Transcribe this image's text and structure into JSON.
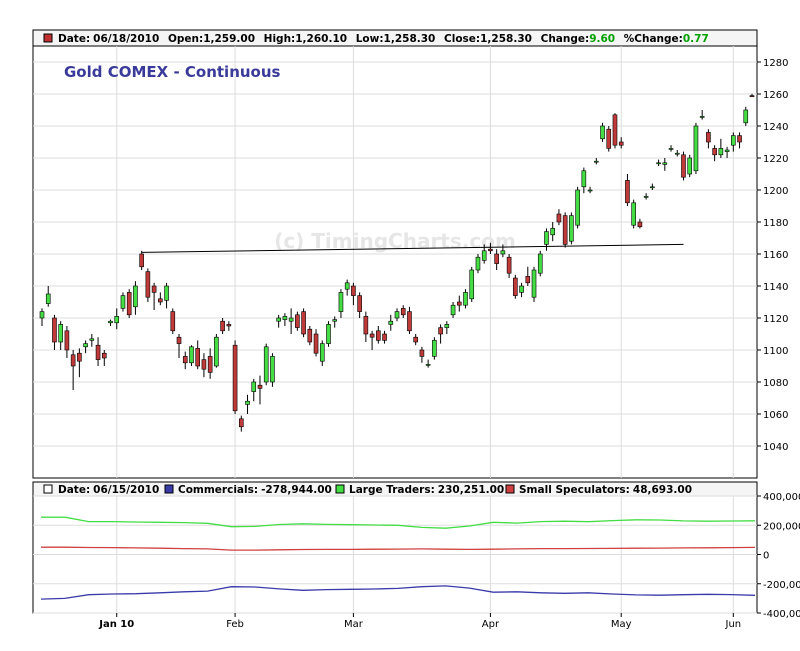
{
  "info_bar": {
    "marker_color": "#c03030",
    "date_label": "Date:",
    "date": "06/18/2010",
    "open_label": "Open:",
    "open": "1,259.00",
    "high_label": "High:",
    "high": "1,260.10",
    "low_label": "Low:",
    "low": "1,258.30",
    "close_label": "Close:",
    "close": "1,258.30",
    "change_label": "Change:",
    "change": "9.60",
    "pct_change_label": "%Change:",
    "pct_change": "0.77",
    "positive_color": "#00a000"
  },
  "cot_bar": {
    "date_label": "Date:",
    "date": "06/15/2010",
    "commercials_label": "Commercials:",
    "commercials": "-278,944.00",
    "large_label": "Large Traders:",
    "large": "230,251.00",
    "small_label": "Small Speculators:",
    "small": "48,693.00"
  },
  "watermark": "(c) TimingCharts.com",
  "colors": {
    "up": "#44dd44",
    "down": "#c03a3a",
    "title": "#3a3a9a",
    "commercials": "#3a3aaa",
    "large": "#44dd44",
    "small": "#d04040",
    "grid": "#dddddd"
  },
  "chart_data": [
    {
      "type": "candlestick",
      "title": "Gold COMEX - Continuous",
      "ylim": [
        1020,
        1290
      ],
      "y_ticks": [
        1040,
        1060,
        1080,
        1100,
        1120,
        1140,
        1160,
        1180,
        1200,
        1220,
        1240,
        1260,
        1280
      ],
      "x_ticks": [
        "Jan 10",
        "Feb",
        "Mar",
        "Apr",
        "May",
        "Jun"
      ],
      "trendline": {
        "from": [
          16,
          1161
        ],
        "to": [
          103,
          1166
        ]
      },
      "bars": [
        {
          "o": 1120,
          "h": 1126,
          "l": 1115,
          "c": 1124
        },
        {
          "o": 1129,
          "h": 1140,
          "l": 1127,
          "c": 1135
        },
        {
          "o": 1120,
          "h": 1122,
          "l": 1100,
          "c": 1105
        },
        {
          "o": 1105,
          "h": 1118,
          "l": 1100,
          "c": 1116
        },
        {
          "o": 1112,
          "h": 1115,
          "l": 1095,
          "c": 1100
        },
        {
          "o": 1097,
          "h": 1100,
          "l": 1075,
          "c": 1090
        },
        {
          "o": 1098,
          "h": 1101,
          "l": 1083,
          "c": 1093
        },
        {
          "o": 1102,
          "h": 1106,
          "l": 1098,
          "c": 1104
        },
        {
          "o": 1106,
          "h": 1110,
          "l": 1102,
          "c": 1107
        },
        {
          "o": 1103,
          "h": 1108,
          "l": 1090,
          "c": 1094
        },
        {
          "o": 1098,
          "h": 1100,
          "l": 1090,
          "c": 1095
        },
        {
          "o": 1117,
          "h": 1119,
          "l": 1115,
          "c": 1118
        },
        {
          "o": 1117,
          "h": 1126,
          "l": 1113,
          "c": 1121
        },
        {
          "o": 1126,
          "h": 1136,
          "l": 1124,
          "c": 1134
        },
        {
          "o": 1136,
          "h": 1138,
          "l": 1120,
          "c": 1122
        },
        {
          "o": 1127,
          "h": 1143,
          "l": 1122,
          "c": 1140
        },
        {
          "o": 1160,
          "h": 1162,
          "l": 1150,
          "c": 1152
        },
        {
          "o": 1149,
          "h": 1151,
          "l": 1130,
          "c": 1133
        },
        {
          "o": 1140,
          "h": 1142,
          "l": 1125,
          "c": 1136
        },
        {
          "o": 1132,
          "h": 1136,
          "l": 1128,
          "c": 1130
        },
        {
          "o": 1131,
          "h": 1142,
          "l": 1126,
          "c": 1140
        },
        {
          "o": 1124,
          "h": 1126,
          "l": 1110,
          "c": 1112
        },
        {
          "o": 1108,
          "h": 1110,
          "l": 1095,
          "c": 1104
        },
        {
          "o": 1096,
          "h": 1099,
          "l": 1088,
          "c": 1092
        },
        {
          "o": 1092,
          "h": 1103,
          "l": 1090,
          "c": 1102
        },
        {
          "o": 1101,
          "h": 1106,
          "l": 1088,
          "c": 1090
        },
        {
          "o": 1094,
          "h": 1098,
          "l": 1083,
          "c": 1088
        },
        {
          "o": 1096,
          "h": 1101,
          "l": 1082,
          "c": 1086
        },
        {
          "o": 1090,
          "h": 1110,
          "l": 1089,
          "c": 1108
        },
        {
          "o": 1118,
          "h": 1120,
          "l": 1110,
          "c": 1112
        },
        {
          "o": 1116,
          "h": 1118,
          "l": 1112,
          "c": 1115
        },
        {
          "o": 1103,
          "h": 1106,
          "l": 1060,
          "c": 1062
        },
        {
          "o": 1057,
          "h": 1059,
          "l": 1049,
          "c": 1052
        },
        {
          "o": 1066,
          "h": 1072,
          "l": 1060,
          "c": 1068
        },
        {
          "o": 1074,
          "h": 1082,
          "l": 1068,
          "c": 1080
        },
        {
          "o": 1078,
          "h": 1084,
          "l": 1066,
          "c": 1076
        },
        {
          "o": 1080,
          "h": 1104,
          "l": 1078,
          "c": 1102
        },
        {
          "o": 1080,
          "h": 1098,
          "l": 1077,
          "c": 1096
        },
        {
          "o": 1118,
          "h": 1122,
          "l": 1114,
          "c": 1120
        },
        {
          "o": 1119,
          "h": 1123,
          "l": 1115,
          "c": 1121
        },
        {
          "o": 1118,
          "h": 1126,
          "l": 1110,
          "c": 1120
        },
        {
          "o": 1122,
          "h": 1124,
          "l": 1112,
          "c": 1114
        },
        {
          "o": 1124,
          "h": 1126,
          "l": 1108,
          "c": 1110
        },
        {
          "o": 1113,
          "h": 1115,
          "l": 1103,
          "c": 1105
        },
        {
          "o": 1110,
          "h": 1113,
          "l": 1096,
          "c": 1098
        },
        {
          "o": 1093,
          "h": 1106,
          "l": 1090,
          "c": 1104
        },
        {
          "o": 1104,
          "h": 1118,
          "l": 1102,
          "c": 1116
        },
        {
          "o": 1118,
          "h": 1121,
          "l": 1114,
          "c": 1119
        },
        {
          "o": 1124,
          "h": 1138,
          "l": 1120,
          "c": 1136
        },
        {
          "o": 1138,
          "h": 1144,
          "l": 1134,
          "c": 1142
        },
        {
          "o": 1140,
          "h": 1142,
          "l": 1128,
          "c": 1134
        },
        {
          "o": 1134,
          "h": 1136,
          "l": 1120,
          "c": 1124
        },
        {
          "o": 1121,
          "h": 1124,
          "l": 1105,
          "c": 1110
        },
        {
          "o": 1110,
          "h": 1112,
          "l": 1100,
          "c": 1108
        },
        {
          "o": 1112,
          "h": 1115,
          "l": 1104,
          "c": 1106
        },
        {
          "o": 1110,
          "h": 1112,
          "l": 1104,
          "c": 1106
        },
        {
          "o": 1116,
          "h": 1122,
          "l": 1112,
          "c": 1118
        },
        {
          "o": 1120,
          "h": 1126,
          "l": 1118,
          "c": 1124
        },
        {
          "o": 1126,
          "h": 1128,
          "l": 1120,
          "c": 1122
        },
        {
          "o": 1124,
          "h": 1127,
          "l": 1110,
          "c": 1112
        },
        {
          "o": 1108,
          "h": 1110,
          "l": 1103,
          "c": 1105
        },
        {
          "o": 1100,
          "h": 1102,
          "l": 1092,
          "c": 1096
        },
        {
          "o": 1091,
          "h": 1094,
          "l": 1089,
          "c": 1091
        },
        {
          "o": 1096,
          "h": 1108,
          "l": 1094,
          "c": 1106
        },
        {
          "o": 1114,
          "h": 1116,
          "l": 1104,
          "c": 1110
        },
        {
          "o": 1114,
          "h": 1118,
          "l": 1110,
          "c": 1116
        },
        {
          "o": 1122,
          "h": 1130,
          "l": 1120,
          "c": 1128
        },
        {
          "o": 1130,
          "h": 1134,
          "l": 1124,
          "c": 1128
        },
        {
          "o": 1128,
          "h": 1138,
          "l": 1126,
          "c": 1136
        },
        {
          "o": 1132,
          "h": 1152,
          "l": 1130,
          "c": 1150
        },
        {
          "o": 1150,
          "h": 1160,
          "l": 1148,
          "c": 1158
        },
        {
          "o": 1156,
          "h": 1166,
          "l": 1154,
          "c": 1162
        },
        {
          "o": 1163,
          "h": 1167,
          "l": 1160,
          "c": 1162
        },
        {
          "o": 1160,
          "h": 1163,
          "l": 1150,
          "c": 1154
        },
        {
          "o": 1160,
          "h": 1166,
          "l": 1158,
          "c": 1162
        },
        {
          "o": 1158,
          "h": 1160,
          "l": 1145,
          "c": 1148
        },
        {
          "o": 1145,
          "h": 1147,
          "l": 1132,
          "c": 1134
        },
        {
          "o": 1136,
          "h": 1142,
          "l": 1133,
          "c": 1140
        },
        {
          "o": 1146,
          "h": 1152,
          "l": 1140,
          "c": 1142
        },
        {
          "o": 1133,
          "h": 1152,
          "l": 1130,
          "c": 1150
        },
        {
          "o": 1148,
          "h": 1162,
          "l": 1146,
          "c": 1160
        },
        {
          "o": 1166,
          "h": 1176,
          "l": 1162,
          "c": 1174
        },
        {
          "o": 1172,
          "h": 1180,
          "l": 1168,
          "c": 1176
        },
        {
          "o": 1185,
          "h": 1188,
          "l": 1178,
          "c": 1180
        },
        {
          "o": 1184,
          "h": 1186,
          "l": 1164,
          "c": 1166
        },
        {
          "o": 1168,
          "h": 1186,
          "l": 1166,
          "c": 1184
        },
        {
          "o": 1178,
          "h": 1202,
          "l": 1176,
          "c": 1200
        },
        {
          "o": 1202,
          "h": 1214,
          "l": 1198,
          "c": 1212
        },
        {
          "o": 1200,
          "h": 1202,
          "l": 1198,
          "c": 1200
        },
        {
          "o": 1218,
          "h": 1220,
          "l": 1216,
          "c": 1218
        },
        {
          "o": 1232,
          "h": 1242,
          "l": 1230,
          "c": 1240
        },
        {
          "o": 1238,
          "h": 1240,
          "l": 1224,
          "c": 1226
        },
        {
          "o": 1247,
          "h": 1248,
          "l": 1226,
          "c": 1228
        },
        {
          "o": 1230,
          "h": 1233,
          "l": 1226,
          "c": 1228
        },
        {
          "o": 1206,
          "h": 1210,
          "l": 1190,
          "c": 1192
        },
        {
          "o": 1178,
          "h": 1194,
          "l": 1176,
          "c": 1192
        },
        {
          "o": 1180,
          "h": 1182,
          "l": 1176,
          "c": 1177
        },
        {
          "o": 1196,
          "h": 1198,
          "l": 1194,
          "c": 1196
        },
        {
          "o": 1202,
          "h": 1204,
          "l": 1200,
          "c": 1202
        },
        {
          "o": 1217,
          "h": 1219,
          "l": 1215,
          "c": 1217
        },
        {
          "o": 1216,
          "h": 1220,
          "l": 1212,
          "c": 1217
        },
        {
          "o": 1226,
          "h": 1228,
          "l": 1224,
          "c": 1226
        },
        {
          "o": 1223,
          "h": 1225,
          "l": 1221,
          "c": 1223
        },
        {
          "o": 1222,
          "h": 1224,
          "l": 1206,
          "c": 1208
        },
        {
          "o": 1210,
          "h": 1222,
          "l": 1208,
          "c": 1220
        },
        {
          "o": 1212,
          "h": 1242,
          "l": 1210,
          "c": 1240
        },
        {
          "o": 1246,
          "h": 1250,
          "l": 1244,
          "c": 1246
        },
        {
          "o": 1236,
          "h": 1238,
          "l": 1226,
          "c": 1230
        },
        {
          "o": 1226,
          "h": 1228,
          "l": 1218,
          "c": 1222
        },
        {
          "o": 1222,
          "h": 1232,
          "l": 1220,
          "c": 1226
        },
        {
          "o": 1224,
          "h": 1227,
          "l": 1220,
          "c": 1225
        },
        {
          "o": 1228,
          "h": 1236,
          "l": 1224,
          "c": 1234
        },
        {
          "o": 1234,
          "h": 1236,
          "l": 1226,
          "c": 1230
        },
        {
          "o": 1242,
          "h": 1252,
          "l": 1240,
          "c": 1250
        },
        {
          "o": 1259,
          "h": 1260.1,
          "l": 1258.3,
          "c": 1258.3
        }
      ]
    },
    {
      "type": "line",
      "ylim": [
        -400000,
        400000
      ],
      "y_ticks": [
        -400000,
        -200000,
        0,
        200000,
        400000
      ],
      "y_tick_labels": [
        "-400,000",
        "-200,000",
        "0",
        "200,000",
        "400,000"
      ],
      "series": [
        {
          "name": "Large Traders",
          "color": "#44dd44",
          "values": [
            255000,
            255000,
            225000,
            225000,
            222000,
            220000,
            218000,
            213000,
            190000,
            192000,
            205000,
            210000,
            206000,
            204000,
            202000,
            200000,
            185000,
            180000,
            195000,
            220000,
            215000,
            225000,
            228000,
            224000,
            232000,
            237000,
            236000,
            230000,
            228000,
            229000,
            230251
          ]
        },
        {
          "name": "Small Speculators",
          "color": "#d04040",
          "values": [
            50000,
            50000,
            48000,
            47000,
            45000,
            43000,
            40000,
            38000,
            30000,
            30000,
            32000,
            34000,
            35000,
            35000,
            36000,
            37000,
            38000,
            36000,
            35000,
            36000,
            38000,
            40000,
            40000,
            41000,
            42000,
            43000,
            44000,
            45000,
            46000,
            47000,
            48693
          ]
        },
        {
          "name": "Commercials",
          "color": "#3a3aaa",
          "values": [
            -305000,
            -300000,
            -275000,
            -270000,
            -268000,
            -262000,
            -255000,
            -250000,
            -220000,
            -222000,
            -235000,
            -245000,
            -240000,
            -238000,
            -236000,
            -232000,
            -220000,
            -215000,
            -230000,
            -258000,
            -255000,
            -262000,
            -265000,
            -262000,
            -270000,
            -276000,
            -278000,
            -275000,
            -272000,
            -274000,
            -278944
          ]
        }
      ]
    }
  ]
}
